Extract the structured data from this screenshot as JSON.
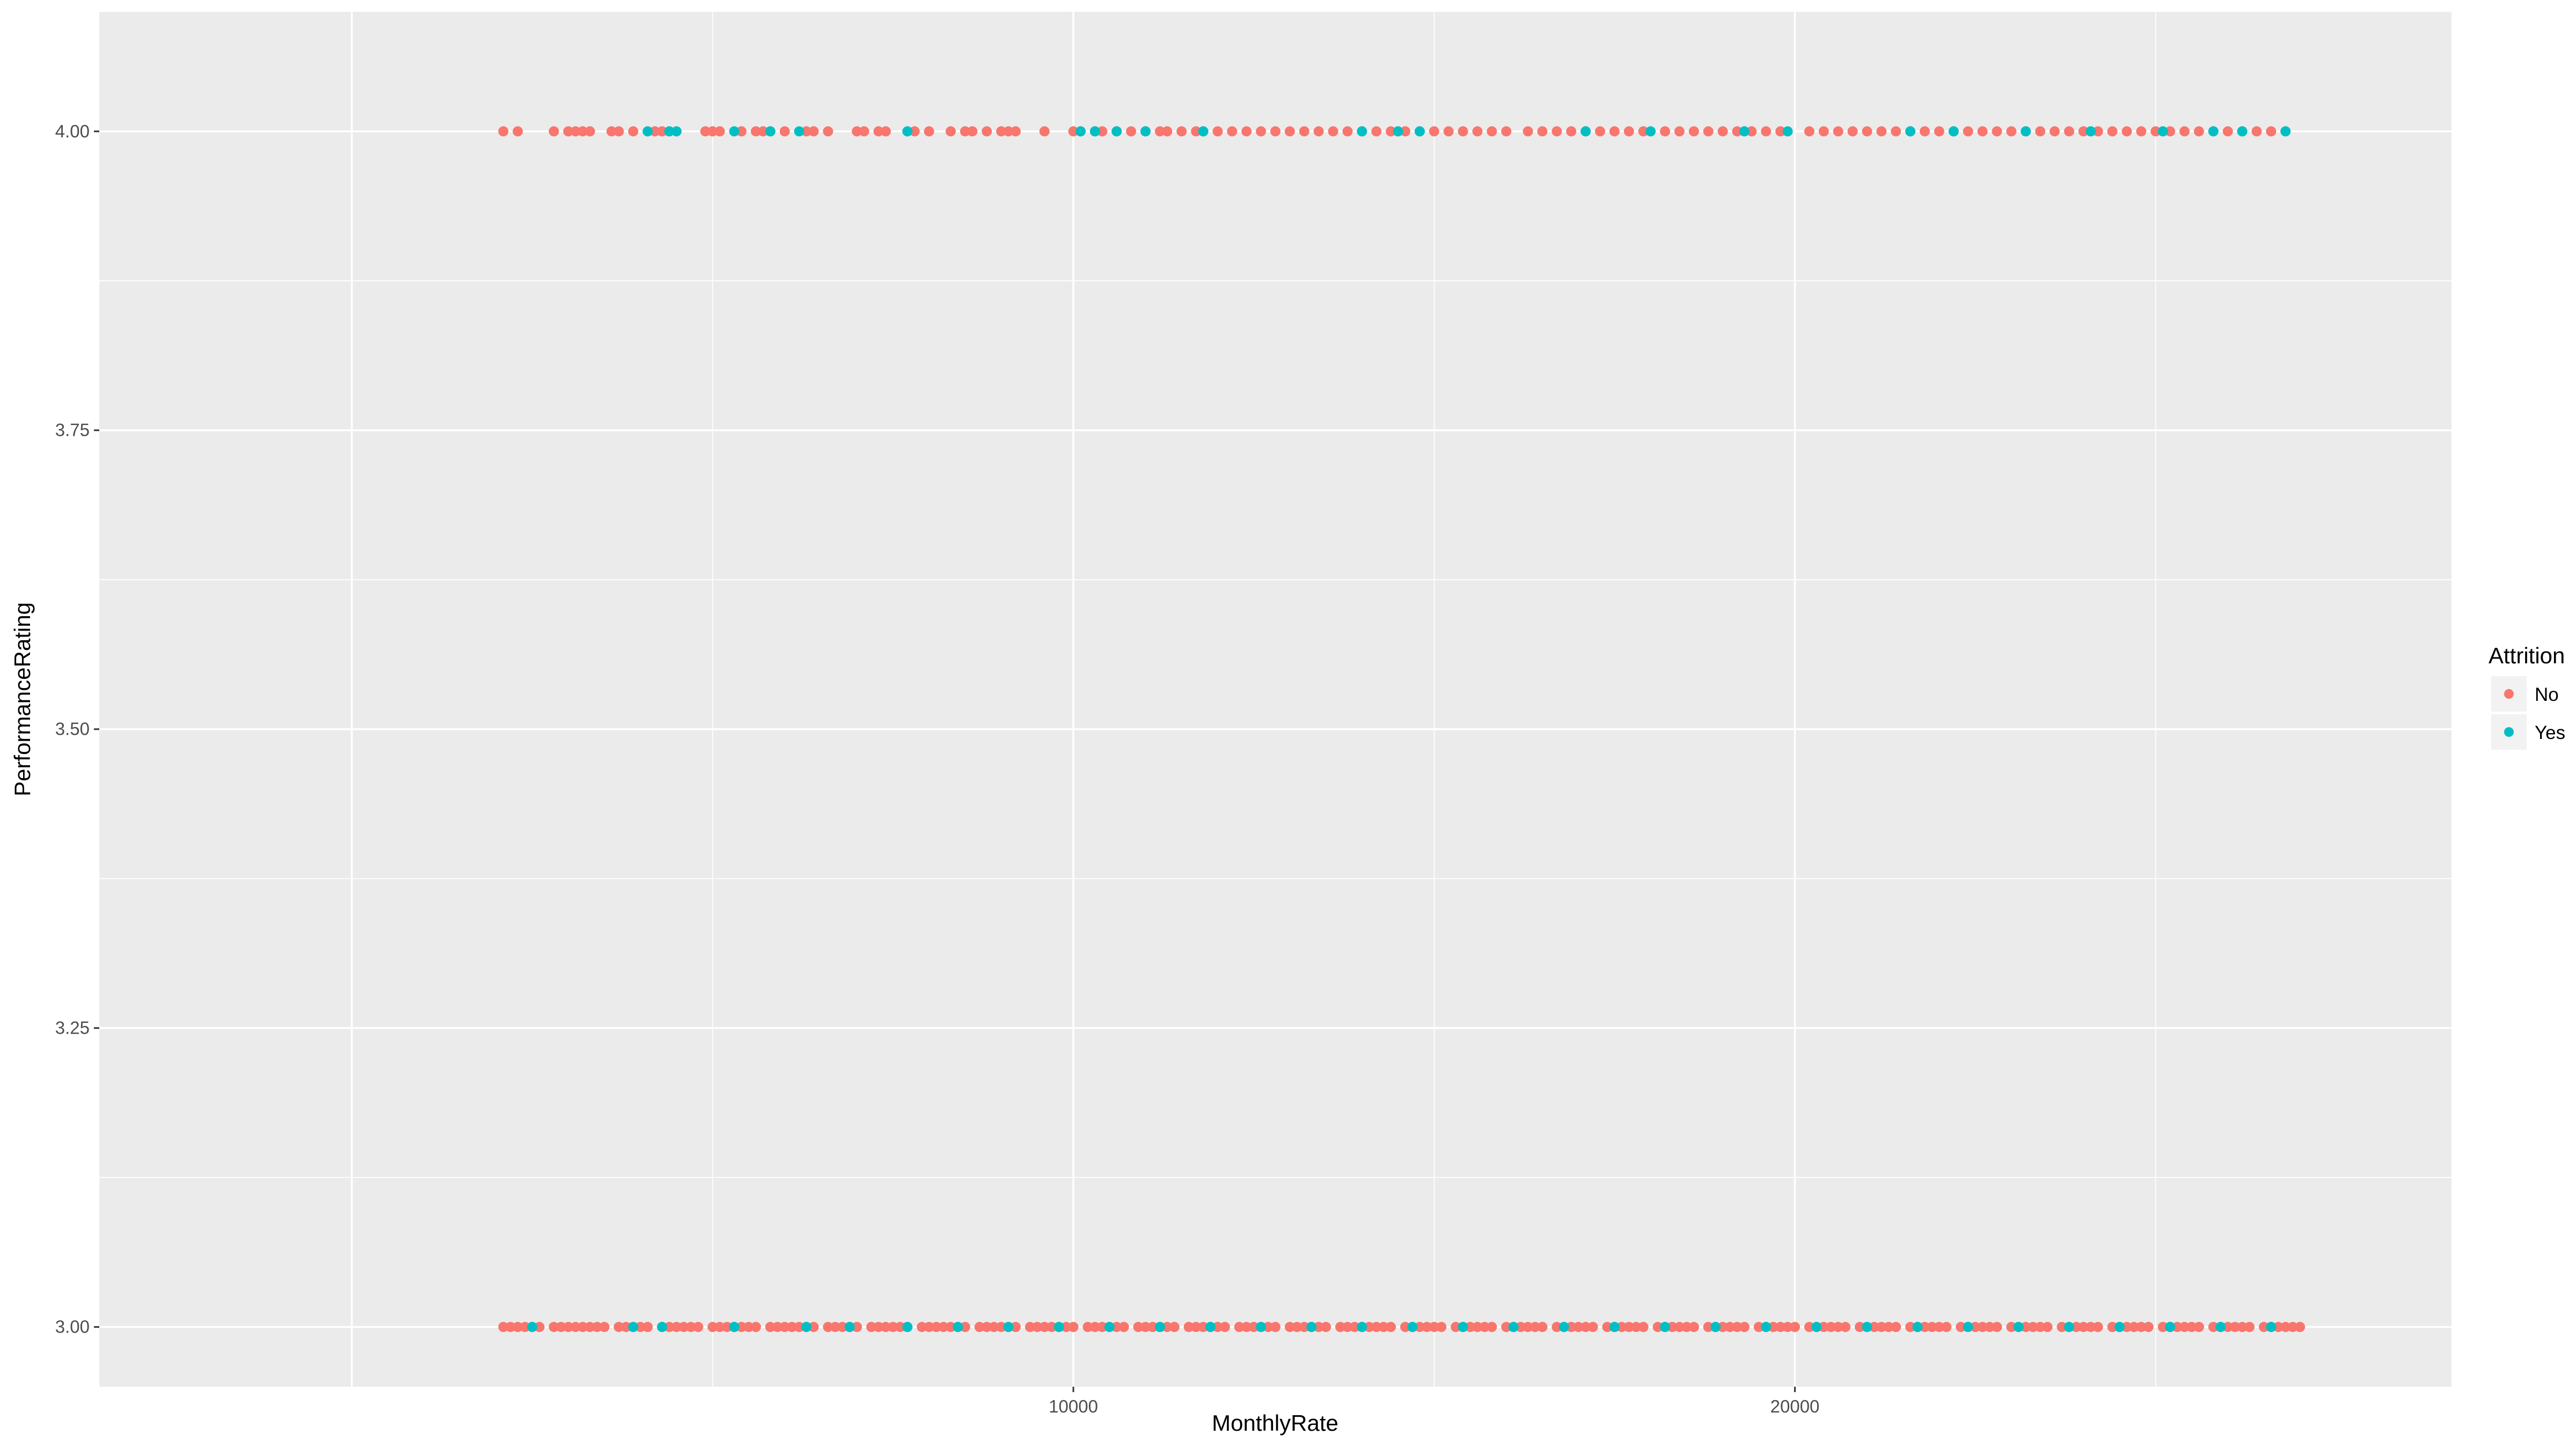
{
  "chart_data": {
    "type": "scatter",
    "title": "",
    "xlabel": "MonthlyRate",
    "ylabel": "PerformanceRating",
    "xlim": [
      -3500,
      29100
    ],
    "ylim": [
      2.95,
      4.1
    ],
    "x_ticks": [
      10000,
      20000
    ],
    "x_tick_labels": [
      "10000",
      "20000"
    ],
    "y_ticks": [
      3.0,
      3.25,
      3.5,
      3.75,
      4.0
    ],
    "y_tick_labels": [
      "3.00",
      "3.25",
      "3.50",
      "3.75",
      "4.00"
    ],
    "grid": true,
    "legend": {
      "title": "Attrition",
      "position": "right"
    },
    "series": [
      {
        "name": "No",
        "color": "#F8766D",
        "points": {
          "4": [
            2100,
            2300,
            2800,
            3000,
            3100,
            3200,
            3300,
            3600,
            3700,
            3900,
            4200,
            4300,
            4400,
            4900,
            5000,
            5100,
            5400,
            5600,
            5700,
            5800,
            6000,
            6300,
            6400,
            6600,
            7000,
            7100,
            7300,
            7400,
            7800,
            8000,
            8300,
            8500,
            8600,
            8800,
            9000,
            9100,
            9200,
            9600,
            10000,
            10100,
            10300,
            10400,
            10600,
            10800,
            11000,
            11200,
            11300,
            11500,
            11700,
            11800,
            12000,
            12200,
            12400,
            12600,
            12800,
            13000,
            13200,
            13400,
            13600,
            13800,
            14000,
            14200,
            14400,
            14600,
            14800,
            15000,
            15200,
            15400,
            15600,
            15800,
            16000,
            16300,
            16500,
            16700,
            16900,
            17100,
            17300,
            17500,
            17700,
            17900,
            18200,
            18400,
            18600,
            18800,
            19000,
            19200,
            19400,
            19600,
            19800,
            20200,
            20400,
            20600,
            20800,
            21000,
            21200,
            21400,
            21600,
            21800,
            22000,
            22200,
            22400,
            22600,
            22800,
            23000,
            23200,
            23400,
            23600,
            23800,
            24000,
            24200,
            24400,
            24600,
            24800,
            25000,
            25200,
            25400,
            25600,
            25800,
            26000,
            26200,
            26400,
            26600,
            26800
          ],
          "3": [
            2100,
            2200,
            2300,
            2400,
            2500,
            2600,
            2800,
            2900,
            3000,
            3100,
            3200,
            3300,
            3400,
            3500,
            3700,
            3800,
            3900,
            4000,
            4100,
            4300,
            4400,
            4500,
            4600,
            4700,
            4800,
            5000,
            5100,
            5200,
            5300,
            5400,
            5500,
            5600,
            5800,
            5900,
            6000,
            6100,
            6200,
            6300,
            6400,
            6600,
            6700,
            6800,
            6900,
            7000,
            7200,
            7300,
            7400,
            7500,
            7600,
            7700,
            7900,
            8000,
            8100,
            8200,
            8300,
            8400,
            8500,
            8700,
            8800,
            8900,
            9000,
            9100,
            9200,
            9400,
            9500,
            9600,
            9700,
            9800,
            9900,
            10000,
            10200,
            10300,
            10400,
            10500,
            10600,
            10700,
            10900,
            11000,
            11100,
            11200,
            11300,
            11400,
            11600,
            11700,
            11800,
            11900,
            12000,
            12100,
            12300,
            12400,
            12500,
            12600,
            12700,
            12800,
            13000,
            13100,
            13200,
            13300,
            13400,
            13500,
            13700,
            13800,
            13900,
            14000,
            14100,
            14200,
            14300,
            14400,
            14600,
            14700,
            14800,
            14900,
            15000,
            15100,
            15300,
            15400,
            15500,
            15600,
            15700,
            15800,
            16000,
            16100,
            16200,
            16300,
            16400,
            16500,
            16700,
            16800,
            16900,
            17000,
            17100,
            17200,
            17400,
            17500,
            17600,
            17700,
            17800,
            17900,
            18100,
            18200,
            18300,
            18400,
            18500,
            18600,
            18800,
            18900,
            19000,
            19100,
            19200,
            19300,
            19500,
            19600,
            19700,
            19800,
            19900,
            20000,
            20200,
            20300,
            20400,
            20500,
            20600,
            20700,
            20900,
            21000,
            21100,
            21200,
            21300,
            21400,
            21600,
            21700,
            21800,
            21900,
            22000,
            22100,
            22300,
            22400,
            22500,
            22600,
            22700,
            22800,
            23000,
            23100,
            23200,
            23300,
            23400,
            23500,
            23700,
            23800,
            23900,
            24000,
            24100,
            24200,
            24400,
            24500,
            24600,
            24700,
            24800,
            24900,
            25100,
            25200,
            25300,
            25400,
            25500,
            25600,
            25800,
            25900,
            26000,
            26100,
            26200,
            26300,
            26500,
            26600,
            26700,
            26800,
            26900,
            27000
          ]
        }
      },
      {
        "name": "Yes",
        "color": "#00BFC4",
        "points": {
          "4": [
            4100,
            4400,
            4500,
            5300,
            5800,
            6200,
            7700,
            10100,
            10300,
            10600,
            11000,
            11800,
            14000,
            14500,
            14800,
            17100,
            18000,
            19300,
            19900,
            21600,
            22200,
            23200,
            24100,
            25100,
            25800,
            26200,
            26800
          ],
          "3": [
            2500,
            3900,
            4300,
            5300,
            6300,
            6900,
            7700,
            8400,
            9100,
            9800,
            10500,
            11200,
            11900,
            12600,
            13300,
            14000,
            14700,
            15400,
            16100,
            16800,
            17500,
            18200,
            18900,
            19600,
            20300,
            21000,
            21700,
            22400,
            23100,
            23800,
            24500,
            25200,
            25900,
            26600
          ]
        }
      }
    ]
  }
}
